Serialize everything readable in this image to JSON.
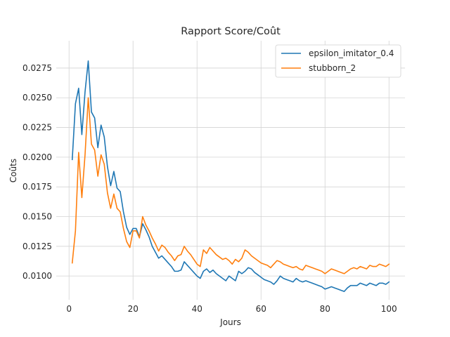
{
  "chart_data": {
    "type": "line",
    "title": "Rapport Score/Coût",
    "xlabel": "Jours",
    "ylabel": "Coûts",
    "xlim": [
      -4,
      105
    ],
    "ylim": [
      0.008,
      0.0298
    ],
    "xticks": [
      0,
      20,
      40,
      60,
      80,
      100
    ],
    "yticks": [
      0.01,
      0.0125,
      0.015,
      0.0175,
      0.02,
      0.0225,
      0.025,
      0.0275
    ],
    "ytick_labels": [
      "0.0100",
      "0.0125",
      "0.0150",
      "0.0175",
      "0.0200",
      "0.0225",
      "0.0250",
      "0.0275"
    ],
    "grid": true,
    "legend_position": "top-right",
    "x": [
      1,
      2,
      3,
      4,
      5,
      6,
      7,
      8,
      9,
      10,
      11,
      12,
      13,
      14,
      15,
      16,
      17,
      18,
      19,
      20,
      21,
      22,
      23,
      24,
      25,
      26,
      27,
      28,
      29,
      30,
      31,
      32,
      33,
      34,
      35,
      36,
      37,
      38,
      39,
      40,
      41,
      42,
      43,
      44,
      45,
      46,
      47,
      48,
      49,
      50,
      51,
      52,
      53,
      54,
      55,
      56,
      57,
      58,
      59,
      60,
      61,
      62,
      63,
      64,
      65,
      66,
      67,
      68,
      69,
      70,
      71,
      72,
      73,
      74,
      75,
      76,
      77,
      78,
      79,
      80,
      81,
      82,
      83,
      84,
      85,
      86,
      87,
      88,
      89,
      90,
      91,
      92,
      93,
      94,
      95,
      96,
      97,
      98,
      99,
      100
    ],
    "series": [
      {
        "name": "epsilon_imitator_0.4",
        "color": "#1f77b4",
        "values": [
          0.0198,
          0.0245,
          0.0258,
          0.0219,
          0.0255,
          0.0281,
          0.0238,
          0.0233,
          0.0208,
          0.0227,
          0.0217,
          0.0192,
          0.0176,
          0.0188,
          0.0174,
          0.0171,
          0.0154,
          0.0141,
          0.0135,
          0.014,
          0.014,
          0.0133,
          0.0144,
          0.0139,
          0.0133,
          0.0125,
          0.012,
          0.0115,
          0.0117,
          0.0114,
          0.0111,
          0.0108,
          0.0104,
          0.0104,
          0.0105,
          0.0112,
          0.0109,
          0.0106,
          0.0103,
          0.01,
          0.0098,
          0.0104,
          0.0106,
          0.0103,
          0.0105,
          0.0102,
          0.01,
          0.0098,
          0.0096,
          0.01,
          0.0098,
          0.0096,
          0.0104,
          0.0102,
          0.0104,
          0.0107,
          0.0106,
          0.0103,
          0.0101,
          0.0099,
          0.0097,
          0.0096,
          0.0095,
          0.0093,
          0.0096,
          0.01,
          0.0098,
          0.0097,
          0.0096,
          0.0095,
          0.0098,
          0.0096,
          0.0095,
          0.0096,
          0.0095,
          0.0094,
          0.0093,
          0.0092,
          0.0091,
          0.0089,
          0.009,
          0.0091,
          0.009,
          0.0089,
          0.0088,
          0.0087,
          0.009,
          0.0092,
          0.0092,
          0.0092,
          0.0094,
          0.0093,
          0.0092,
          0.0094,
          0.0093,
          0.0092,
          0.0094,
          0.0094,
          0.0093,
          0.0095
        ]
      },
      {
        "name": "stubborn_2",
        "color": "#ff7f0e",
        "values": [
          0.0111,
          0.0138,
          0.0204,
          0.0166,
          0.0202,
          0.025,
          0.0211,
          0.0206,
          0.0184,
          0.0202,
          0.0194,
          0.017,
          0.0157,
          0.0169,
          0.0157,
          0.0154,
          0.014,
          0.0129,
          0.0124,
          0.0138,
          0.0138,
          0.0132,
          0.015,
          0.0143,
          0.0138,
          0.0132,
          0.0127,
          0.0121,
          0.0126,
          0.0124,
          0.012,
          0.0117,
          0.0113,
          0.0117,
          0.0118,
          0.0125,
          0.0121,
          0.0118,
          0.0114,
          0.011,
          0.0108,
          0.0122,
          0.0119,
          0.0124,
          0.0121,
          0.0118,
          0.0116,
          0.0114,
          0.0115,
          0.0113,
          0.011,
          0.0114,
          0.0112,
          0.0115,
          0.0122,
          0.012,
          0.0117,
          0.0115,
          0.0113,
          0.0111,
          0.011,
          0.0109,
          0.0107,
          0.011,
          0.0113,
          0.0112,
          0.011,
          0.0109,
          0.0108,
          0.0107,
          0.0108,
          0.0106,
          0.0105,
          0.0109,
          0.0108,
          0.0107,
          0.0106,
          0.0105,
          0.0104,
          0.0102,
          0.0104,
          0.0106,
          0.0105,
          0.0104,
          0.0103,
          0.0102,
          0.0104,
          0.0106,
          0.0107,
          0.0106,
          0.0108,
          0.0107,
          0.0106,
          0.0109,
          0.0108,
          0.0108,
          0.011,
          0.0109,
          0.0108,
          0.011
        ]
      }
    ]
  }
}
